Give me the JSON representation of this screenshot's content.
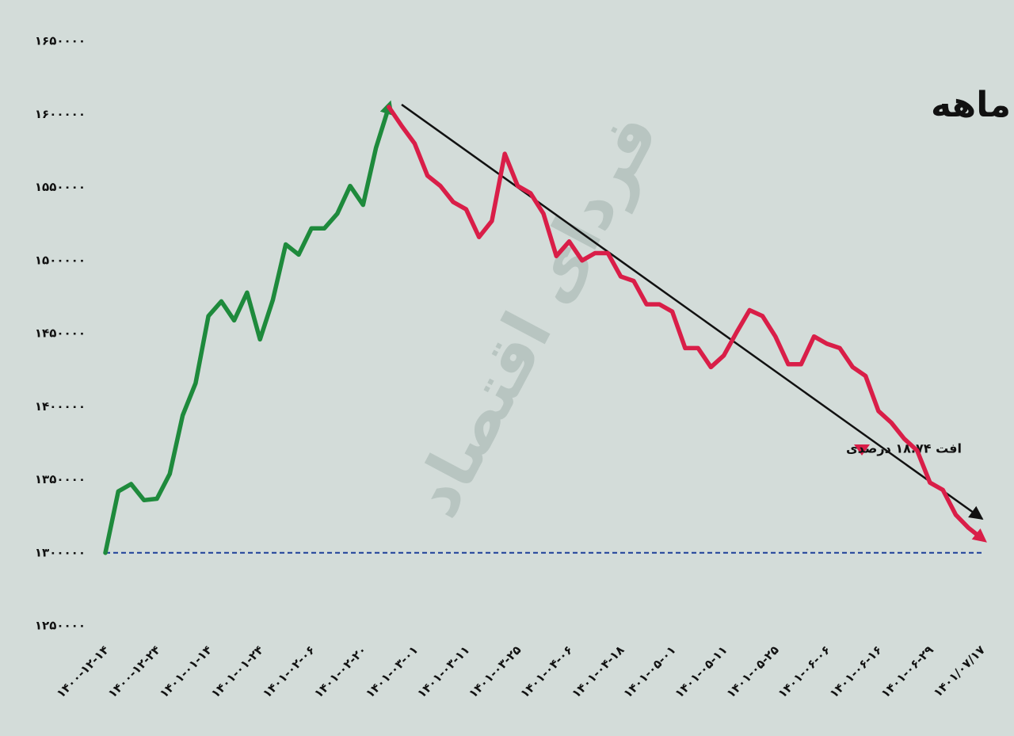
{
  "chart_data": {
    "type": "line",
    "title": "بورس درکف هفت ماهه",
    "annotation": "افت ۱۸.۷۴ درصدی",
    "watermark": "فردای اقتصاد",
    "categories": [
      "۱۴۰۰-۱۲-۱۴",
      null,
      null,
      null,
      "۱۴۰۰-۱۲-۲۴",
      null,
      null,
      null,
      "۱۴۰۱-۰۱-۱۴",
      null,
      null,
      null,
      "۱۴۰۱-۰۱-۲۴",
      null,
      null,
      null,
      "۱۴۰۱-۰۲-۰۶",
      null,
      null,
      null,
      "۱۴۰۱-۰۲-۲۰",
      null,
      null,
      null,
      "۱۴۰۱-۰۳-۰۱",
      null,
      null,
      null,
      "۱۴۰۱-۰۳-۱۱",
      null,
      null,
      null,
      "۱۴۰۱-۰۳-۲۵",
      null,
      null,
      null,
      "۱۴۰۱-۰۴-۰۶",
      null,
      null,
      null,
      "۱۴۰۱-۰۴-۱۸",
      null,
      null,
      null,
      "۱۴۰۱-۰۵-۰۱",
      null,
      null,
      null,
      "۱۴۰۱-۰۵-۱۱",
      null,
      null,
      null,
      "۱۴۰۱-۰۵-۲۵",
      null,
      null,
      null,
      "۱۴۰۱-۰۶-۰۶",
      null,
      null,
      null,
      "۱۴۰۱-۰۶-۱۶",
      null,
      null,
      null,
      "۱۴۰۱-۰۶-۲۹",
      null,
      null,
      null,
      "۱۴۰۱/۰۷/۱۷"
    ],
    "series": [
      {
        "color": "#1e8a3c",
        "values": [
          1300000,
          1342000,
          1347000,
          1336000,
          1337000,
          1354000,
          1394000,
          1416000,
          1462000,
          1472000,
          1459000,
          1478000,
          1446000,
          1473000,
          1511000,
          1504000,
          1522000,
          1522000,
          1532000,
          1551000,
          1538000,
          1577000,
          1605000,
          null,
          null,
          null,
          null,
          null,
          null,
          null,
          null,
          null,
          null,
          null,
          null,
          null,
          null,
          null,
          null,
          null,
          null,
          null,
          null,
          null,
          null,
          null,
          null,
          null,
          null,
          null,
          null,
          null,
          null,
          null,
          null,
          null,
          null,
          null,
          null,
          null,
          null,
          null,
          null,
          null,
          null,
          null,
          null,
          null,
          null
        ]
      },
      {
        "color": "#d91e48",
        "values": [
          null,
          null,
          null,
          null,
          null,
          null,
          null,
          null,
          null,
          null,
          null,
          null,
          null,
          null,
          null,
          null,
          null,
          null,
          null,
          null,
          null,
          null,
          1605000,
          1592000,
          1580000,
          1558000,
          1551000,
          1540000,
          1535000,
          1516000,
          1527000,
          1573000,
          1551000,
          1546000,
          1532000,
          1503000,
          1513000,
          1500000,
          1505000,
          1505000,
          1489000,
          1486000,
          1470000,
          1470000,
          1465000,
          1440000,
          1440000,
          1427000,
          1435000,
          1451000,
          1466000,
          1462000,
          1448000,
          1429000,
          1429000,
          1448000,
          1443000,
          1440000,
          1427000,
          1421000,
          1397000,
          1389000,
          1378000,
          1370000,
          1348000,
          1343000,
          1326000,
          1317000,
          1310000
        ]
      }
    ],
    "reference_line": 1300000,
    "ylim": [
      1250000,
      1650000
    ],
    "yticks": [
      {
        "value": 1250000,
        "label": "۱۲۵۰۰۰۰"
      },
      {
        "value": 1300000,
        "label": "۱۳۰۰۰۰۰"
      },
      {
        "value": 1350000,
        "label": "۱۳۵۰۰۰۰"
      },
      {
        "value": 1400000,
        "label": "۱۴۰۰۰۰۰"
      },
      {
        "value": 1450000,
        "label": "۱۴۵۰۰۰۰"
      },
      {
        "value": 1500000,
        "label": "۱۵۰۰۰۰۰"
      },
      {
        "value": 1550000,
        "label": "۱۵۵۰۰۰۰"
      },
      {
        "value": 1600000,
        "label": "۱۶۰۰۰۰۰"
      },
      {
        "value": 1650000,
        "label": "۱۶۵۰۰۰۰"
      }
    ]
  }
}
